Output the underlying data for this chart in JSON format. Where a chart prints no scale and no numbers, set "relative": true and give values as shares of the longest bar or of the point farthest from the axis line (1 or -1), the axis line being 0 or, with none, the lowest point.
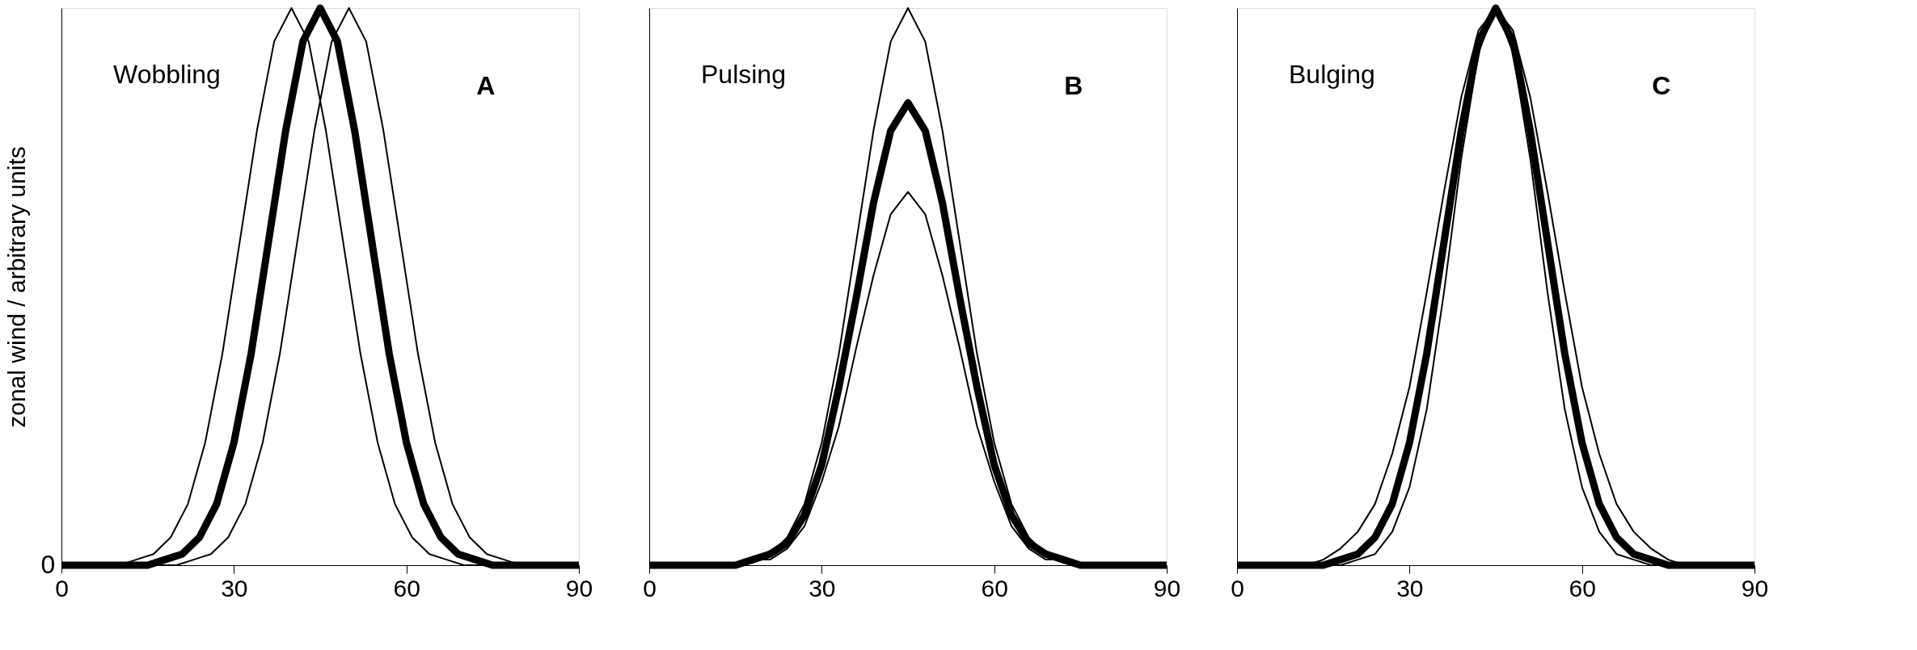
{
  "chart_data": [
    {
      "type": "line",
      "ylabel": "zonal wind / arbitrary units",
      "relative": true,
      "xlim": [
        0,
        90
      ],
      "xticks": [
        0,
        30,
        60,
        90
      ],
      "annotations": [
        "Wobbling",
        "A",
        "0"
      ],
      "series": [
        {
          "color": "#000000",
          "x": [
            0,
            3,
            6,
            9,
            12,
            15,
            18,
            21,
            24,
            27,
            30,
            33,
            36,
            39,
            42,
            45,
            48,
            51,
            54,
            57,
            60,
            63,
            66,
            69,
            72,
            75,
            78,
            81,
            84,
            87,
            90
          ],
          "values": [
            0,
            0,
            0,
            0,
            0,
            0,
            0.01,
            0.02,
            0.05,
            0.11,
            0.22,
            0.38,
            0.58,
            0.78,
            0.94,
            1,
            0.94,
            0.78,
            0.58,
            0.38,
            0.22,
            0.11,
            0.05,
            0.02,
            0.01,
            0,
            0,
            0,
            0,
            0,
            0
          ]
        },
        {
          "color": "#000000",
          "x": [
            0,
            4,
            7,
            10,
            13,
            16,
            19,
            22,
            25,
            28,
            31,
            34,
            37,
            40,
            43,
            46,
            49,
            52,
            55,
            58,
            61,
            64,
            67,
            70,
            73,
            76,
            90
          ],
          "values": [
            0,
            0,
            0,
            0,
            0.01,
            0.02,
            0.05,
            0.11,
            0.22,
            0.38,
            0.58,
            0.78,
            0.94,
            1,
            0.94,
            0.78,
            0.58,
            0.38,
            0.22,
            0.11,
            0.05,
            0.02,
            0.01,
            0,
            0,
            0,
            0
          ]
        },
        {
          "color": "#000000",
          "x": [
            0,
            14,
            17,
            20,
            23,
            26,
            29,
            32,
            35,
            38,
            41,
            44,
            47,
            50,
            53,
            56,
            59,
            62,
            65,
            68,
            71,
            74,
            77,
            80,
            83,
            86,
            90
          ],
          "values": [
            0,
            0,
            0,
            0,
            0.01,
            0.02,
            0.05,
            0.11,
            0.22,
            0.38,
            0.58,
            0.78,
            0.94,
            1,
            0.94,
            0.78,
            0.58,
            0.38,
            0.22,
            0.11,
            0.05,
            0.02,
            0.01,
            0,
            0,
            0,
            0
          ]
        }
      ]
    },
    {
      "type": "line",
      "relative": true,
      "xlim": [
        0,
        90
      ],
      "xticks": [
        0,
        30,
        60,
        90
      ],
      "tick_labels": "x",
      "annotations": [
        "Pulsing",
        "B"
      ],
      "series": [
        {
          "color": "#000000",
          "x": [
            0,
            3,
            6,
            9,
            12,
            15,
            18,
            21,
            24,
            27,
            30,
            33,
            36,
            39,
            42,
            45,
            48,
            51,
            54,
            57,
            60,
            63,
            66,
            69,
            72,
            75,
            78,
            81,
            84,
            87,
            90
          ],
          "values": [
            0,
            0,
            0,
            0,
            0,
            0,
            0.01,
            0.02,
            0.04,
            0.09,
            0.18,
            0.32,
            0.48,
            0.65,
            0.78,
            0.83,
            0.78,
            0.65,
            0.48,
            0.32,
            0.18,
            0.09,
            0.04,
            0.02,
            0.01,
            0,
            0,
            0,
            0,
            0,
            0
          ]
        },
        {
          "color": "#000000",
          "x": [
            0,
            3,
            6,
            9,
            12,
            15,
            18,
            21,
            24,
            27,
            30,
            33,
            36,
            39,
            42,
            45,
            48,
            51,
            54,
            57,
            60,
            63,
            66,
            69,
            72,
            75,
            78,
            81,
            84,
            87,
            90
          ],
          "values": [
            0,
            0,
            0,
            0,
            0,
            0,
            0.01,
            0.02,
            0.05,
            0.11,
            0.22,
            0.38,
            0.58,
            0.78,
            0.94,
            1,
            0.94,
            0.78,
            0.58,
            0.38,
            0.22,
            0.11,
            0.05,
            0.02,
            0.01,
            0,
            0,
            0,
            0,
            0,
            0
          ]
        },
        {
          "color": "#000000",
          "x": [
            0,
            3,
            6,
            9,
            12,
            15,
            18,
            21,
            24,
            27,
            30,
            33,
            36,
            39,
            42,
            45,
            48,
            51,
            54,
            57,
            60,
            63,
            66,
            69,
            72,
            75,
            78,
            81,
            84,
            87,
            90
          ],
          "values": [
            0,
            0,
            0,
            0,
            0,
            0,
            0.01,
            0.01,
            0.03,
            0.07,
            0.15,
            0.25,
            0.39,
            0.52,
            0.63,
            0.67,
            0.63,
            0.52,
            0.39,
            0.25,
            0.15,
            0.07,
            0.03,
            0.01,
            0.01,
            0,
            0,
            0,
            0,
            0,
            0
          ]
        }
      ]
    },
    {
      "type": "line",
      "relative": true,
      "xlim": [
        0,
        90
      ],
      "xticks": [
        0,
        30,
        60,
        90
      ],
      "tick_labels": "x",
      "annotations": [
        "Bulging",
        "C"
      ],
      "series": [
        {
          "color": "#000000",
          "x": [
            0,
            3,
            6,
            9,
            12,
            15,
            18,
            21,
            24,
            27,
            30,
            33,
            36,
            39,
            42,
            45,
            48,
            51,
            54,
            57,
            60,
            63,
            66,
            69,
            72,
            75,
            78,
            81,
            84,
            87,
            90
          ],
          "values": [
            0,
            0,
            0,
            0,
            0,
            0,
            0.01,
            0.02,
            0.05,
            0.11,
            0.22,
            0.38,
            0.58,
            0.78,
            0.94,
            1,
            0.94,
            0.78,
            0.58,
            0.38,
            0.22,
            0.11,
            0.05,
            0.02,
            0.01,
            0,
            0,
            0,
            0,
            0,
            0
          ]
        },
        {
          "color": "#000000",
          "x": [
            0,
            3,
            6,
            9,
            12,
            15,
            18,
            21,
            24,
            27,
            30,
            33,
            36,
            39,
            42,
            45,
            48,
            51,
            54,
            57,
            60,
            63,
            66,
            69,
            72,
            75,
            78,
            81,
            84,
            87,
            90
          ],
          "values": [
            0,
            0,
            0,
            0,
            0,
            0,
            0,
            0.01,
            0.02,
            0.06,
            0.14,
            0.28,
            0.49,
            0.73,
            0.92,
            1,
            0.92,
            0.73,
            0.49,
            0.28,
            0.14,
            0.06,
            0.02,
            0.01,
            0,
            0,
            0,
            0,
            0,
            0,
            0
          ]
        },
        {
          "color": "#000000",
          "x": [
            0,
            3,
            6,
            9,
            12,
            15,
            18,
            21,
            24,
            27,
            30,
            33,
            36,
            39,
            42,
            45,
            48,
            51,
            54,
            57,
            60,
            63,
            66,
            69,
            72,
            75,
            78,
            81,
            84,
            87,
            90
          ],
          "values": [
            0,
            0,
            0,
            0,
            0,
            0.01,
            0.03,
            0.06,
            0.11,
            0.2,
            0.32,
            0.49,
            0.67,
            0.84,
            0.96,
            1,
            0.96,
            0.84,
            0.67,
            0.49,
            0.32,
            0.2,
            0.11,
            0.06,
            0.03,
            0.01,
            0,
            0,
            0,
            0,
            0
          ]
        }
      ]
    }
  ]
}
